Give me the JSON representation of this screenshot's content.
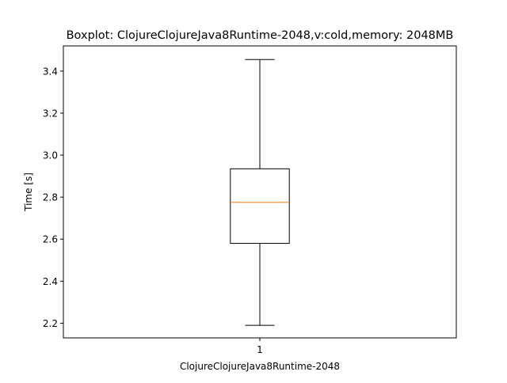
{
  "chart_data": {
    "type": "boxplot",
    "title": "Boxplot: ClojureClojureJava8Runtime-2048,v:cold,memory: 2048MB",
    "xlabel": "ClojureClojureJava8Runtime-2048",
    "ylabel": "Time [s]",
    "categories": [
      "1"
    ],
    "boxes": [
      {
        "category": "1",
        "whisker_low": 2.19,
        "q1": 2.58,
        "median": 2.775,
        "q3": 2.935,
        "whisker_high": 3.455
      }
    ],
    "ylim": [
      2.13,
      3.52
    ],
    "yticks": [
      2.2,
      2.4,
      2.6,
      2.8,
      3.0,
      3.2,
      3.4
    ],
    "ytick_labels": [
      "2.2",
      "2.4",
      "2.6",
      "2.8",
      "3.0",
      "3.2",
      "3.4"
    ],
    "grid": false,
    "colors": {
      "box": "#000000",
      "median": "#ff7f0e",
      "background": "#ffffff"
    }
  }
}
